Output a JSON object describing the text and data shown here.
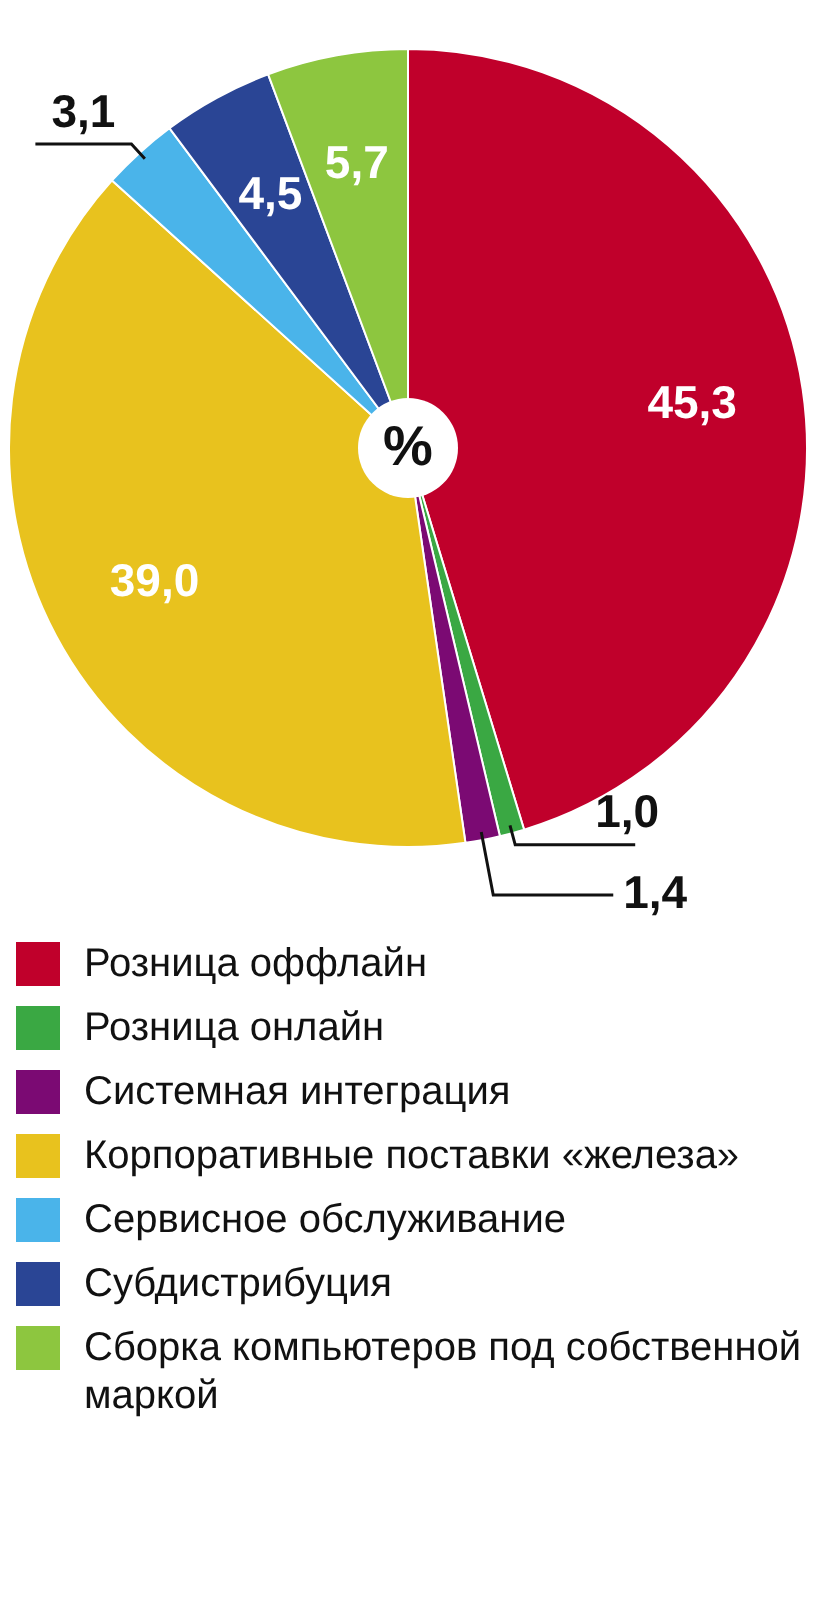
{
  "chart_data": {
    "type": "pie",
    "categories": [
      "Розница оффлайн",
      "Розница онлайн",
      "Системная интеграция",
      "Корпоративные поставки «железа»",
      "Сервисное обслуживание",
      "Субдистрибуция",
      "Сборка компьютеров под собственной маркой"
    ],
    "values": [
      45.3,
      1.0,
      1.4,
      39.0,
      3.1,
      4.5,
      5.7
    ],
    "colors": [
      "#c0002b",
      "#3aa843",
      "#7b0a73",
      "#e8c21e",
      "#4ab4ea",
      "#2a4595",
      "#8dc63f"
    ],
    "value_labels": [
      "45,3",
      "1,0",
      "1,4",
      "39,0",
      "3,1",
      "4,5",
      "5,7"
    ],
    "annotations": [
      "%"
    ],
    "legend": "bottom"
  }
}
